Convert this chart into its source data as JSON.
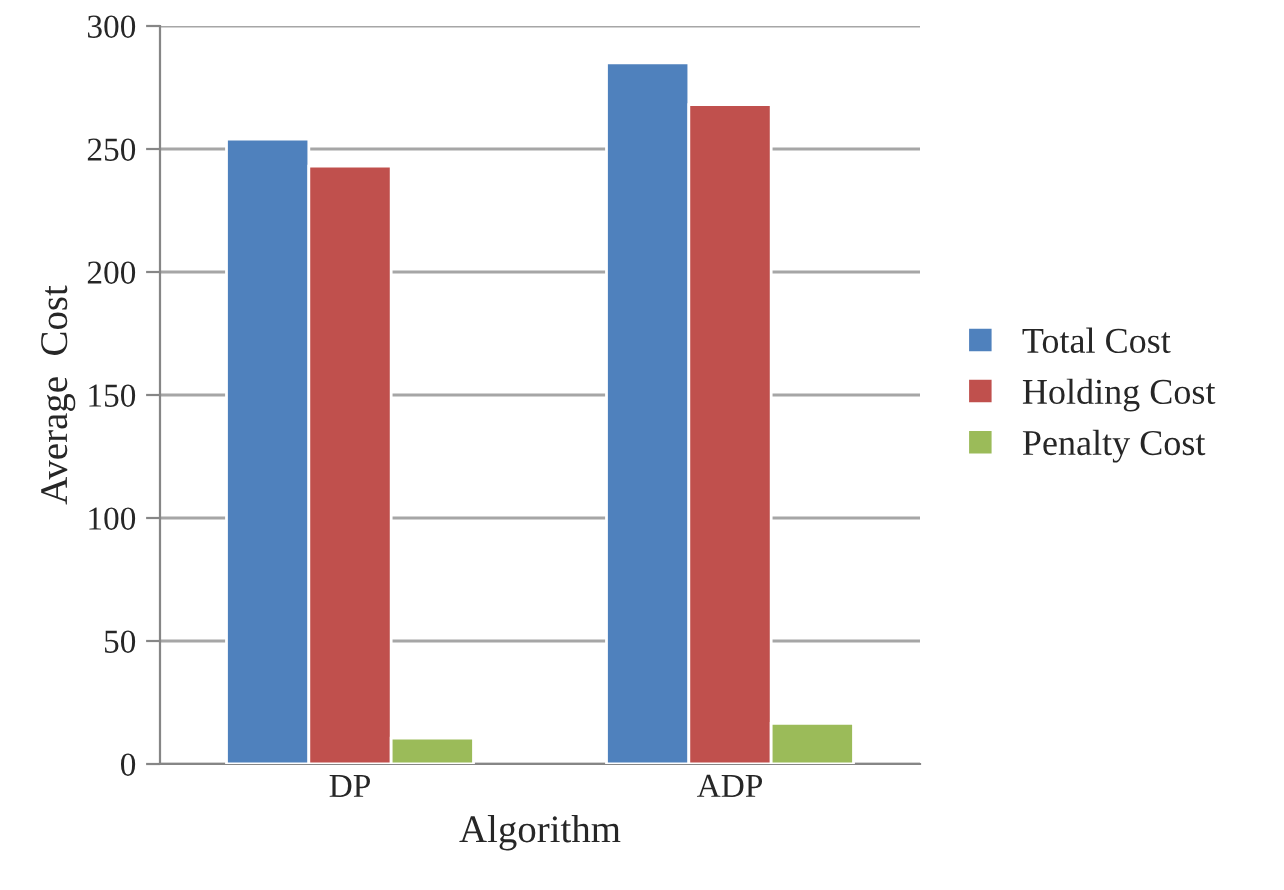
{
  "chart_data": {
    "type": "bar",
    "xlabel": "Algorithm",
    "ylabel": "Average  Cost",
    "categories": [
      "DP",
      "ADP"
    ],
    "series": [
      {
        "name": "Total Cost",
        "color": "#4f81bd",
        "values": [
          254,
          285
        ]
      },
      {
        "name": "Holding Cost",
        "color": "#c0504d",
        "values": [
          243,
          268
        ]
      },
      {
        "name": "Penalty Cost",
        "color": "#9bbb59",
        "values": [
          10.5,
          16.5
        ]
      }
    ],
    "ylim": [
      0,
      300
    ],
    "yticks": [
      0,
      50,
      100,
      150,
      200,
      250,
      300
    ],
    "grid": "y",
    "legend": "right"
  }
}
